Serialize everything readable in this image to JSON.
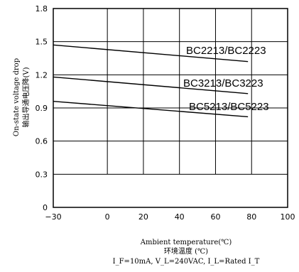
{
  "chart_data": {
    "type": "line",
    "xlabel_en": "Ambient temperature(℃)",
    "xlabel_zh": "环境温度 (℃)",
    "condition": "I_F=10mA, V_L=240VAC, I_L=Rated I_T",
    "ylabel_en": "On-state voltage drop",
    "ylabel_zh": "输出导通电压降(V)",
    "xlim": [
      -30,
      100
    ],
    "ylim": [
      0,
      1.8
    ],
    "grid": true,
    "x_ticks": [
      "−30",
      "0",
      "20",
      "40",
      "60",
      "80",
      "100"
    ],
    "y_ticks": [
      "0",
      "0.3",
      "0.6",
      "0.9",
      "1.2",
      "1.5",
      "1.8"
    ],
    "series": [
      {
        "name": "BC2213/BC2223",
        "x": [
          -30,
          78
        ],
        "y": [
          1.47,
          1.32
        ]
      },
      {
        "name": "BC3213/BC3223",
        "x": [
          -30,
          78
        ],
        "y": [
          1.18,
          1.03
        ]
      },
      {
        "name": "BC5213/BC5223",
        "x": [
          -30,
          78
        ],
        "y": [
          0.96,
          0.82
        ]
      }
    ]
  }
}
